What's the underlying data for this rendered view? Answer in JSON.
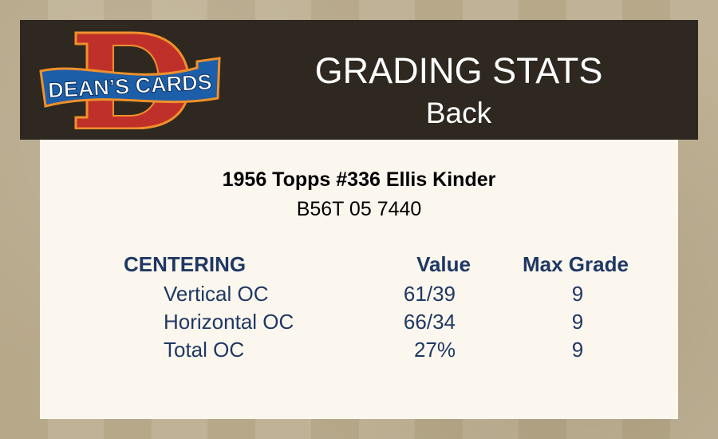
{
  "header": {
    "logo_text": "DEAN'S CARDS",
    "title": "GRADING STATS",
    "subtitle": "Back"
  },
  "card": {
    "title": "1956 Topps #336 Ellis Kinder",
    "code": "B56T 05 7440"
  },
  "table": {
    "headers": {
      "section": "CENTERING",
      "value": "Value",
      "max_grade": "Max Grade"
    },
    "rows": [
      {
        "label": "Vertical OC",
        "value": "61/39",
        "max_grade": "9"
      },
      {
        "label": "Horizontal OC",
        "value": "66/34",
        "max_grade": "9"
      },
      {
        "label": "Total OC",
        "value": "27%",
        "max_grade": "9"
      }
    ]
  },
  "colors": {
    "header_bg": "#2e2820",
    "panel_bg": "#fcf7ee",
    "table_text": "#1f3864",
    "logo_red": "#c0302a",
    "logo_blue": "#1d5ea8",
    "logo_orange": "#f0902a"
  }
}
